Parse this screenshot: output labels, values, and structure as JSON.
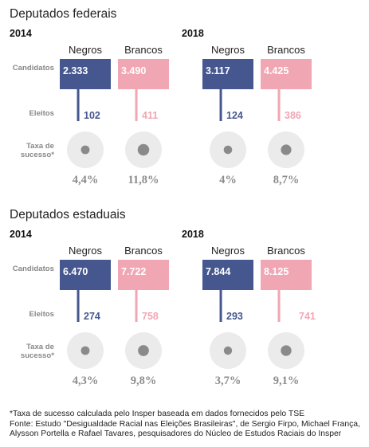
{
  "labels": {
    "candidatos": "Candidatos",
    "eleitos": "Eleitos",
    "taxa": [
      "Taxa de",
      "sucesso*"
    ]
  },
  "colors": {
    "negros": "#46578f",
    "brancos": "#f1a6b4",
    "circle": "#ebebeb",
    "dot": "#8a8a8a",
    "pct_text": "#8c8c8c"
  },
  "chart_data": [
    {
      "type": "table",
      "title": "Deputados federais",
      "years": [
        {
          "year": "2014",
          "groups": [
            {
              "name": "Negros",
              "candidatos": "2.333",
              "eleitos": "102",
              "taxa": "4,4%"
            },
            {
              "name": "Brancos",
              "candidatos": "3.490",
              "eleitos": "411",
              "taxa": "11,8%"
            }
          ]
        },
        {
          "year": "2018",
          "groups": [
            {
              "name": "Negros",
              "candidatos": "3.117",
              "eleitos": "124",
              "taxa": "4%"
            },
            {
              "name": "Brancos",
              "candidatos": "4.425",
              "eleitos": "386",
              "taxa": "8,7%"
            }
          ]
        }
      ]
    },
    {
      "type": "table",
      "title": "Deputados estaduais",
      "years": [
        {
          "year": "2014",
          "groups": [
            {
              "name": "Negros",
              "candidatos": "6.470",
              "eleitos": "274",
              "taxa": "4,3%"
            },
            {
              "name": "Brancos",
              "candidatos": "7.722",
              "eleitos": "758",
              "taxa": "9,8%"
            }
          ]
        },
        {
          "year": "2018",
          "groups": [
            {
              "name": "Negros",
              "candidatos": "7.844",
              "eleitos": "293",
              "taxa": "3,7%"
            },
            {
              "name": "Brancos",
              "candidatos": "8.125",
              "eleitos": "741",
              "taxa": "9,1%"
            }
          ]
        }
      ]
    }
  ],
  "footnote": {
    "line1": "*Taxa de sucesso calculada pelo Insper baseada em dados fornecidos pelo TSE",
    "line2": "Fonte: Estudo \"Desigualdade Racial nas Eleições Brasileiras\", de Sergio Firpo, Michael França,",
    "line3": "Alysson Portella e Rafael Tavares, pesquisadores do Núcleo de Estudos Raciais do Insper"
  }
}
